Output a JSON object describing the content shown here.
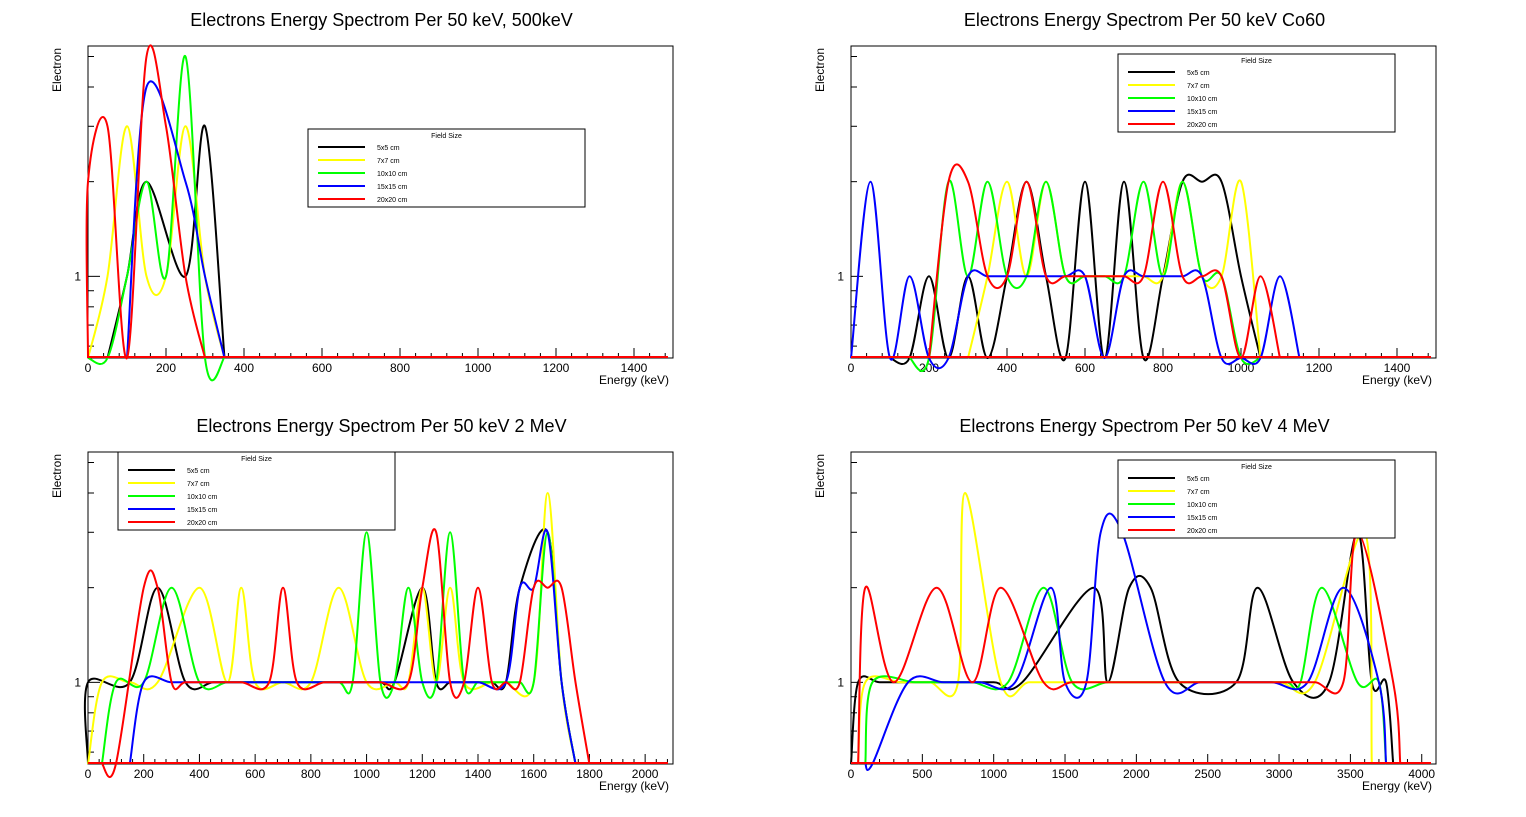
{
  "legend_labels": [
    "5x5 cm",
    "7x7 cm",
    "10x10 cm",
    "15x15 cm",
    "20x20 cm"
  ],
  "chart_data": [
    {
      "type": "line",
      "title": "Electrons Energy Spectrom Per 50 keV, 500keV",
      "xlabel": "Energy (keV)",
      "ylabel": "Electron",
      "y_scale": "log",
      "xlim": [
        0,
        1500
      ],
      "ylim": [
        0.55,
        5.4
      ],
      "xticks": [
        0,
        200,
        400,
        600,
        800,
        1000,
        1200,
        1400
      ],
      "yticks": [
        1
      ],
      "legend": {
        "title": "Field Size",
        "position": "center"
      },
      "series": [
        {
          "name": "5x5 cm",
          "color": "#000000",
          "x": [
            100,
            150,
            250,
            300
          ],
          "y": [
            1,
            2,
            1,
            3
          ]
        },
        {
          "name": "7x7 cm",
          "color": "#ffff00",
          "x": [
            50,
            100,
            150,
            200,
            250,
            300
          ],
          "y": [
            1,
            3,
            1,
            1,
            3,
            1
          ]
        },
        {
          "name": "10x10 cm",
          "color": "#00ff00",
          "x": [
            50,
            100,
            150,
            200,
            250,
            300
          ],
          "y": [
            0.55,
            1,
            2,
            1,
            5,
            0.55
          ]
        },
        {
          "name": "15x15 cm",
          "color": "#0000ff",
          "x": [
            150,
            250,
            300
          ],
          "y": [
            4,
            2,
            1
          ]
        },
        {
          "name": "20x20 cm",
          "color": "#ff0000",
          "x": [
            0,
            50,
            100,
            150,
            200,
            250
          ],
          "y": [
            2,
            3,
            0.55,
            5,
            3,
            1
          ]
        }
      ]
    },
    {
      "type": "line",
      "title": "Electrons Energy Spectrom Per 50 keV Co60",
      "xlabel": "Energy (keV)",
      "ylabel": "Electron",
      "y_scale": "log",
      "xlim": [
        0,
        1500
      ],
      "ylim": [
        0.55,
        5.4
      ],
      "xticks": [
        0,
        200,
        400,
        600,
        800,
        1000,
        1200,
        1400
      ],
      "yticks": [
        1
      ],
      "legend": {
        "title": "Field Size",
        "position": "top-right"
      },
      "series": [
        {
          "name": "5x5 cm",
          "color": "#000000",
          "x": [
            150,
            200,
            250,
            300,
            350,
            400,
            450,
            500,
            550,
            600,
            650,
            700,
            750,
            800,
            850,
            900,
            950,
            1000
          ],
          "y": [
            0.55,
            1,
            0.55,
            1,
            0.55,
            1,
            2,
            1,
            0.55,
            2,
            0.55,
            2,
            0.55,
            1,
            2,
            2,
            2,
            1
          ]
        },
        {
          "name": "7x7 cm",
          "color": "#ffff00",
          "x": [
            350,
            400,
            450,
            500,
            550,
            600,
            650,
            700,
            750,
            800,
            850,
            900,
            950,
            1000
          ],
          "y": [
            1,
            2,
            1,
            2,
            1,
            1,
            1,
            1,
            1,
            1,
            2,
            1,
            1,
            2
          ]
        },
        {
          "name": "10x10 cm",
          "color": "#00ff00",
          "x": [
            200,
            250,
            300,
            350,
            400,
            450,
            500,
            550,
            600,
            650,
            700,
            750,
            800,
            850,
            900,
            950,
            1000
          ],
          "y": [
            0.55,
            2,
            1,
            2,
            1,
            1,
            2,
            1,
            1,
            1,
            1,
            2,
            1,
            2,
            1,
            1,
            0.55
          ]
        },
        {
          "name": "15x15 cm",
          "color": "#0000ff",
          "x": [
            50,
            100,
            150,
            200,
            250,
            300,
            350,
            400,
            450,
            500,
            550,
            600,
            650,
            700,
            750,
            800,
            850,
            900,
            950,
            1000,
            1050,
            1100
          ],
          "y": [
            2,
            0.55,
            1,
            0.55,
            0.55,
            1,
            1,
            1,
            1,
            1,
            1,
            1,
            0.55,
            1,
            1,
            1,
            1,
            1,
            0.55,
            0.55,
            0.55,
            1
          ]
        },
        {
          "name": "20x20 cm",
          "color": "#ff0000",
          "x": [
            250,
            300,
            350,
            400,
            450,
            500,
            550,
            600,
            650,
            700,
            750,
            800,
            850,
            900,
            950,
            1000,
            1050
          ],
          "y": [
            2,
            2,
            1,
            1,
            2,
            1,
            1,
            1,
            1,
            1,
            1,
            2,
            1,
            1,
            1,
            0.55,
            1
          ]
        }
      ]
    },
    {
      "type": "line",
      "title": "Electrons Energy Spectrom Per 50 keV 2 MeV",
      "xlabel": "Energy (keV)",
      "ylabel": "Electron",
      "y_scale": "log",
      "xlim": [
        0,
        2100
      ],
      "ylim": [
        0.55,
        5.4
      ],
      "xticks": [
        0,
        200,
        400,
        600,
        800,
        1000,
        1200,
        1400,
        1600,
        1800,
        2000
      ],
      "yticks": [
        1
      ],
      "legend": {
        "title": "Field Size",
        "position": "top-left"
      },
      "series": [
        {
          "name": "5x5 cm",
          "color": "#000000",
          "x": [
            0,
            150,
            250,
            350,
            450,
            550,
            600,
            650,
            700,
            750,
            800,
            850,
            900,
            950,
            1050,
            1100,
            1200,
            1250,
            1300,
            1350,
            1400,
            1450,
            1500,
            1550,
            1650,
            1700
          ],
          "y": [
            1,
            1,
            2,
            1,
            1,
            1,
            1,
            1,
            1,
            1,
            1,
            1,
            1,
            1,
            1,
            1,
            2,
            1,
            1,
            1,
            1,
            1,
            1,
            2,
            3,
            1
          ]
        },
        {
          "name": "7x7 cm",
          "color": "#ffff00",
          "x": [
            50,
            150,
            250,
            400,
            500,
            550,
            600,
            700,
            800,
            900,
            1000,
            1100,
            1150,
            1200,
            1250,
            1300,
            1350,
            1450,
            1500,
            1600,
            1650,
            1700
          ],
          "y": [
            1,
            1,
            1,
            2,
            1,
            2,
            1,
            1,
            1,
            2,
            1,
            1,
            1,
            2,
            1,
            2,
            1,
            1,
            1,
            1,
            4,
            1
          ]
        },
        {
          "name": "10x10 cm",
          "color": "#00ff00",
          "x": [
            100,
            200,
            300,
            400,
            500,
            600,
            700,
            800,
            900,
            950,
            1000,
            1050,
            1100,
            1150,
            1200,
            1250,
            1300,
            1350,
            1400,
            1450,
            1500,
            1550,
            1600,
            1650,
            1700
          ],
          "y": [
            1,
            1,
            2,
            1,
            1,
            1,
            1,
            1,
            1,
            1,
            3,
            1,
            1,
            2,
            1,
            1,
            3,
            1,
            1,
            1,
            1,
            1,
            1,
            3,
            1
          ]
        },
        {
          "name": "15x15 cm",
          "color": "#0000ff",
          "x": [
            200,
            300,
            400,
            500,
            600,
            700,
            800,
            900,
            1000,
            1100,
            1200,
            1300,
            1400,
            1500,
            1550,
            1600,
            1650,
            1700
          ],
          "y": [
            1,
            1,
            1,
            1,
            1,
            1,
            1,
            1,
            1,
            1,
            1,
            1,
            1,
            1,
            2,
            2,
            3,
            1
          ]
        },
        {
          "name": "20x20 cm",
          "color": "#ff0000",
          "x": [
            100,
            200,
            250,
            300,
            350,
            450,
            550,
            650,
            700,
            750,
            850,
            950,
            1050,
            1150,
            1200,
            1250,
            1300,
            1350,
            1400,
            1450,
            1500,
            1550,
            1600,
            1650,
            1700,
            1750
          ],
          "y": [
            0.55,
            2,
            2,
            1,
            1,
            1,
            1,
            1,
            2,
            1,
            1,
            1,
            1,
            1,
            2,
            3,
            1,
            1,
            2,
            1,
            1,
            1,
            2,
            2,
            2,
            1
          ]
        }
      ]
    },
    {
      "type": "line",
      "title": "Electrons Energy Spectrom Per 50 keV 4 MeV",
      "xlabel": "Energy (keV)",
      "ylabel": "Electron",
      "y_scale": "log",
      "xlim": [
        0,
        4100
      ],
      "ylim": [
        0.55,
        5.4
      ],
      "xticks": [
        0,
        500,
        1000,
        1500,
        2000,
        2500,
        3000,
        3500,
        4000
      ],
      "yticks": [
        1
      ],
      "legend": {
        "title": "Field Size",
        "position": "top-right"
      },
      "series": [
        {
          "name": "5x5 cm",
          "color": "#000000",
          "x": [
            50,
            200,
            400,
            700,
            1000,
            1200,
            1700,
            1800,
            1950,
            2100,
            2300,
            2700,
            2850,
            3100,
            3350,
            3550,
            3650,
            3750
          ],
          "y": [
            1,
            1,
            1,
            1,
            1,
            1,
            2,
            1,
            2,
            2,
            1,
            1,
            2,
            1,
            1,
            3,
            1,
            1
          ]
        },
        {
          "name": "7x7 cm",
          "color": "#ffff00",
          "x": [
            100,
            350,
            550,
            750,
            800,
            1050,
            1250,
            1550,
            1900,
            2250,
            2500,
            2650,
            3000,
            3250,
            3600
          ],
          "y": [
            1,
            1,
            1,
            1,
            4,
            1,
            1,
            1,
            1,
            1,
            1,
            1,
            1,
            1,
            3
          ]
        },
        {
          "name": "10x10 cm",
          "color": "#00ff00",
          "x": [
            150,
            450,
            650,
            850,
            1100,
            1350,
            1550,
            1800,
            2050,
            2300,
            2400,
            2600,
            2800,
            3050,
            3150,
            3300,
            3550,
            3700
          ],
          "y": [
            1,
            1,
            1,
            1,
            1,
            2,
            1,
            1,
            1,
            1,
            1,
            1,
            1,
            1,
            1,
            2,
            1,
            1
          ]
        },
        {
          "name": "15x15 cm",
          "color": "#0000ff",
          "x": [
            150,
            400,
            650,
            900,
            1150,
            1400,
            1500,
            1650,
            1750,
            1900,
            2200,
            2450,
            2700,
            2950,
            3200,
            3450,
            3700
          ],
          "y": [
            0.55,
            1,
            1,
            1,
            1,
            2,
            1,
            1,
            3,
            3,
            1,
            1,
            1,
            1,
            1,
            2,
            1
          ]
        },
        {
          "name": "20x20 cm",
          "color": "#ff0000",
          "x": [
            100,
            300,
            600,
            850,
            1050,
            1350,
            1550,
            1850,
            2100,
            2300,
            2550,
            2750,
            3000,
            3250,
            3450,
            3550,
            3800
          ],
          "y": [
            2,
            1,
            2,
            1,
            2,
            1,
            1,
            1,
            1,
            1,
            1,
            1,
            1,
            1,
            1,
            3,
            1
          ]
        }
      ]
    }
  ]
}
